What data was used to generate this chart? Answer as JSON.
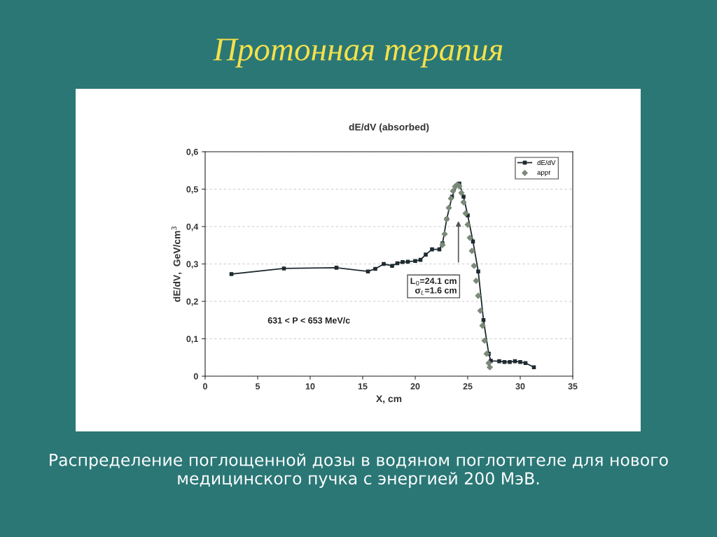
{
  "chart_data": {
    "type": "line",
    "title": "Протонная терапия",
    "subtitle": "dE/dV (absorbed)",
    "xlabel": "X, cm",
    "ylabel": "dE/dV,  GeV/cm$^{3}$",
    "xlim": [
      0,
      35
    ],
    "xticks": [
      0,
      5,
      10,
      15,
      20,
      25,
      30,
      35
    ],
    "ylim": [
      0,
      0.6
    ],
    "yticks": [
      {
        "value": 0,
        "label": "0"
      },
      {
        "value": 0.1,
        "label": "0,1"
      },
      {
        "value": 0.2,
        "label": "0,2"
      },
      {
        "value": 0.3,
        "label": "0,3"
      },
      {
        "value": 0.4,
        "label": "0,4"
      },
      {
        "value": 0.5,
        "label": "0,5"
      },
      {
        "value": 0.6,
        "label": "0,6"
      }
    ],
    "grid": "y",
    "legend": "top right",
    "series": [
      {
        "name": "dE/dV",
        "marker": "square",
        "line_style": "solid",
        "color": "#1e2b30",
        "x": [
          2.5,
          7.5,
          12.5,
          15.5,
          16.2,
          17.0,
          17.8,
          18.3,
          18.8,
          19.3,
          20.0,
          20.5,
          21.0,
          21.6,
          22.3,
          22.6,
          23.0,
          23.5,
          24.0,
          24.2,
          24.6,
          25.0,
          25.5,
          26.0,
          26.5,
          27.0,
          27.2,
          28.0,
          28.5,
          29.0,
          29.5,
          30.0,
          30.5,
          31.3
        ],
        "values": [
          0.273,
          0.288,
          0.29,
          0.28,
          0.287,
          0.3,
          0.295,
          0.302,
          0.305,
          0.306,
          0.308,
          0.311,
          0.325,
          0.339,
          0.339,
          0.355,
          0.42,
          0.48,
          0.51,
          0.515,
          0.48,
          0.43,
          0.36,
          0.28,
          0.15,
          0.06,
          0.041,
          0.04,
          0.038,
          0.038,
          0.04,
          0.038,
          0.035,
          0.024
        ]
      },
      {
        "name": "appr",
        "type": "scatter",
        "marker": "diamond",
        "color": "#7b8a78",
        "x": [
          22.6,
          22.8,
          23.0,
          23.2,
          23.4,
          23.6,
          23.8,
          24.0,
          24.2,
          24.4,
          24.6,
          24.8,
          25.0,
          25.2,
          25.4,
          25.6,
          25.8,
          26.0,
          26.2,
          26.4,
          26.6,
          26.8,
          27.0,
          27.1
        ],
        "values": [
          0.351,
          0.38,
          0.42,
          0.45,
          0.475,
          0.495,
          0.507,
          0.512,
          0.508,
          0.49,
          0.465,
          0.435,
          0.405,
          0.37,
          0.335,
          0.295,
          0.255,
          0.215,
          0.175,
          0.135,
          0.095,
          0.06,
          0.035,
          0.024
        ]
      }
    ],
    "annotations": [
      "631 < P < 653 MeV/c",
      "L$_{0}$=24.1 cm\nσ$_{L}$=1.6 cm",
      "Распределение поглощенной дозы в водяном поглотителе для нового медицинского пучка с энергией 200 МэВ."
    ]
  }
}
